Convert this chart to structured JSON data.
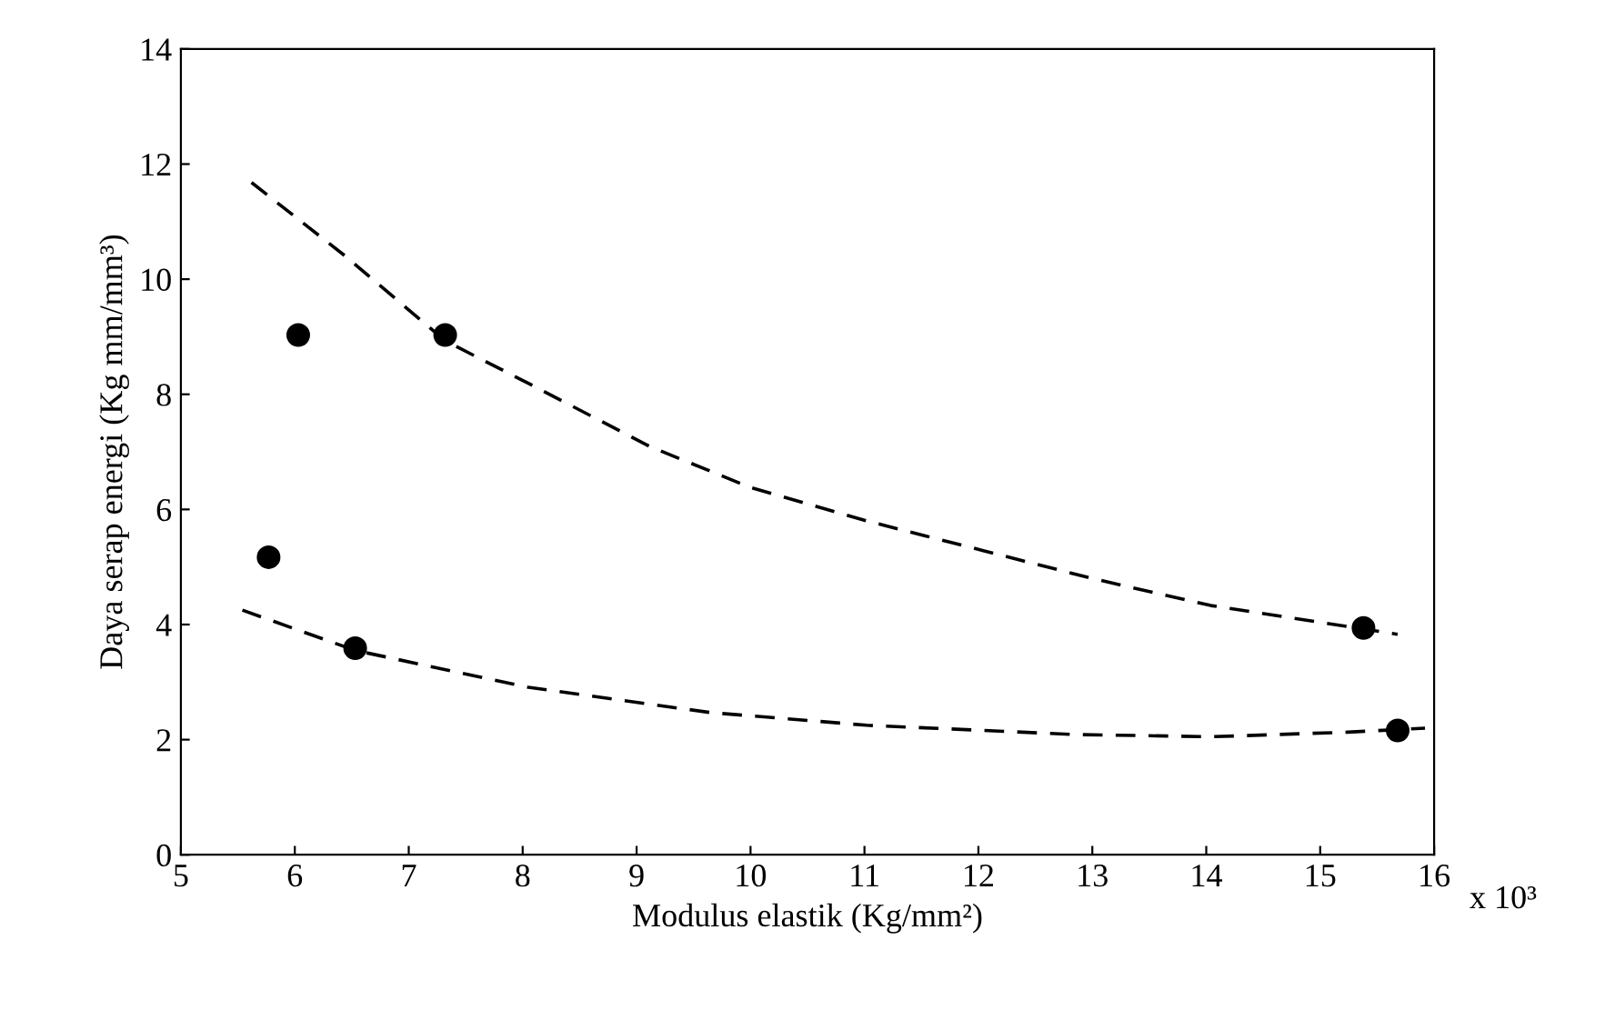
{
  "chart_data": {
    "type": "scatter",
    "xlabel": "Modulus elastik (Kg/mm²)",
    "ylabel": "Daya serap energi (Kg mm/mm³)",
    "xlim": [
      5,
      16
    ],
    "xticks": [
      5,
      6,
      7,
      8,
      9,
      10,
      11,
      12,
      13,
      14,
      15,
      16
    ],
    "annotations": [
      "x 10³"
    ],
    "ylim": [
      0,
      14
    ],
    "yticks": [
      0,
      2,
      4,
      6,
      8,
      10,
      12,
      14
    ],
    "grid": false,
    "legend": false,
    "series": [
      {
        "color": "#000000",
        "marker": "circle",
        "x": [
          5.77,
          6.03,
          6.53,
          7.32,
          15.38,
          15.68
        ],
        "values": [
          5.17,
          9.03,
          3.59,
          9.03,
          3.94,
          2.16
        ]
      },
      {
        "type": "line",
        "color": "#000000",
        "marker": "none",
        "line_style": "dashed",
        "x": [
          5.62,
          6.45,
          7.32,
          8.05,
          9.12,
          10.0,
          11.02,
          12.05,
          13.0,
          14.04,
          15.68
        ],
        "values": [
          11.68,
          10.39,
          8.93,
          8.19,
          7.09,
          6.38,
          5.8,
          5.28,
          4.8,
          4.33,
          3.83
        ]
      },
      {
        "type": "line",
        "color": "#000000",
        "marker": "none",
        "line_style": "dashed",
        "x": [
          5.54,
          6.53,
          8.05,
          9.65,
          11.02,
          12.84,
          14.04,
          15.24,
          15.92
        ],
        "values": [
          4.25,
          3.55,
          2.91,
          2.47,
          2.25,
          2.09,
          2.05,
          2.13,
          2.2
        ]
      }
    ]
  }
}
